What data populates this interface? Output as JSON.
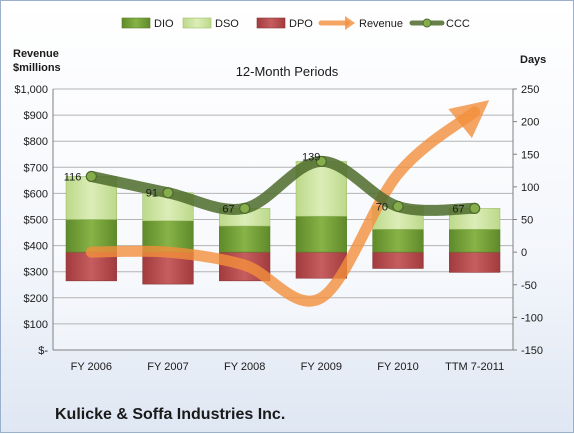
{
  "company_name": "Kulicke & Soffa Industries Inc.",
  "chart_data": {
    "type": "bar",
    "title": "12-Month Periods",
    "y_left_label": [
      "Revenue",
      "$millions"
    ],
    "y_right_label": "Days",
    "categories": [
      "FY 2006",
      "FY 2007",
      "FY 2008",
      "FY 2009",
      "FY 2010",
      "TTM 7-2011"
    ],
    "y_left": {
      "range": [
        0,
        1000
      ],
      "ticks": [
        0,
        100,
        200,
        300,
        400,
        500,
        600,
        700,
        800,
        900,
        1000
      ],
      "tick_labels": [
        "$-",
        "$100",
        "$200",
        "$300",
        "$400",
        "$500",
        "$600",
        "$700",
        "$800",
        "$900",
        "$1,000"
      ]
    },
    "y_right": {
      "range": [
        -150,
        250
      ],
      "ticks": [
        -150,
        -100,
        -50,
        0,
        50,
        100,
        150,
        200,
        250
      ],
      "tick_labels": [
        "-150",
        "-100",
        "-50",
        "0",
        "50",
        "100",
        "150",
        "200",
        "250"
      ]
    },
    "grid": true,
    "legend_position": "top",
    "series": [
      {
        "name": "DIO",
        "kind": "stacked-bar",
        "axis": "right",
        "color": "#77a13b",
        "values": [
          50,
          48,
          40,
          55,
          35,
          35
        ]
      },
      {
        "name": "DSO",
        "kind": "stacked-bar",
        "axis": "right",
        "color": "#cfe6a3",
        "values": [
          66,
          43,
          27,
          84,
          35,
          32
        ]
      },
      {
        "name": "DPO",
        "kind": "bar-negative",
        "axis": "right",
        "color": "#b84a4c",
        "values": [
          -44,
          -49,
          -44,
          -40,
          -25,
          -31
        ]
      },
      {
        "name": "Revenue",
        "kind": "arrow-line",
        "axis": "left",
        "color": "#f28e3c",
        "values": [
          0,
          0,
          -20,
          -70,
          120,
          215
        ]
      },
      {
        "name": "CCC",
        "kind": "line",
        "axis": "right",
        "color": "#4d6b2c",
        "values": [
          116,
          91,
          67,
          139,
          70,
          67
        ]
      }
    ],
    "data_labels": [
      "116",
      "91",
      "67",
      "139",
      "70",
      "67"
    ]
  }
}
